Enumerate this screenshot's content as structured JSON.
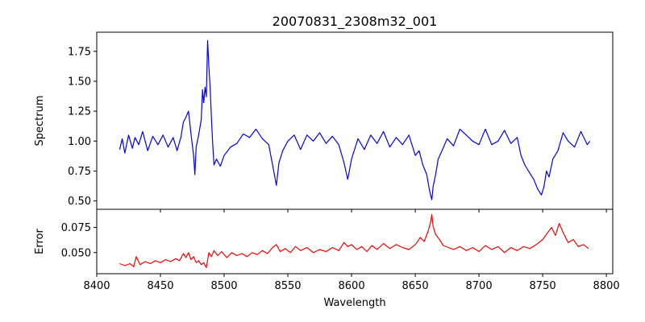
{
  "chart_data": [
    {
      "type": "line",
      "title": "20070831_2308m32_001",
      "xlabel": "",
      "ylabel": "Spectrum",
      "xlim": [
        8400,
        8805
      ],
      "ylim": [
        0.43,
        1.91
      ],
      "xticks": [
        8400,
        8450,
        8500,
        8550,
        8600,
        8650,
        8700,
        8750,
        8800
      ],
      "yticks": [
        0.5,
        0.75,
        1.0,
        1.25,
        1.5,
        1.75
      ],
      "ytick_labels": [
        "0.50",
        "0.75",
        "1.00",
        "1.25",
        "1.50",
        "1.75"
      ],
      "xtick_labels_visible": false,
      "series": [
        {
          "color": "#0000ff",
          "x": [
            8418,
            8420,
            8422,
            8425,
            8428,
            8430,
            8433,
            8436,
            8440,
            8444,
            8448,
            8452,
            8456,
            8460,
            8463,
            8466,
            8468,
            8470,
            8472,
            8474,
            8476,
            8477,
            8478,
            8480,
            8482,
            8483,
            8484,
            8485,
            8486,
            8487,
            8488,
            8489,
            8490,
            8491,
            8492,
            8494,
            8497,
            8500,
            8505,
            8510,
            8515,
            8520,
            8525,
            8530,
            8535,
            8538,
            8541,
            8543,
            8546,
            8550,
            8555,
            8560,
            8565,
            8570,
            8575,
            8580,
            8585,
            8590,
            8594,
            8597,
            8600,
            8605,
            8610,
            8615,
            8620,
            8625,
            8630,
            8635,
            8640,
            8645,
            8650,
            8653,
            8656,
            8659,
            8661,
            8662,
            8663,
            8664,
            8666,
            8668,
            8671,
            8675,
            8680,
            8685,
            8690,
            8695,
            8700,
            8705,
            8710,
            8715,
            8720,
            8725,
            8730,
            8733,
            8736,
            8740,
            8743,
            8746,
            8749,
            8751,
            8753,
            8755,
            8758,
            8762,
            8766,
            8770,
            8775,
            8780,
            8785,
            8787
          ],
          "values": [
            0.93,
            1.02,
            0.9,
            1.05,
            0.94,
            1.03,
            0.97,
            1.08,
            0.92,
            1.04,
            0.97,
            1.05,
            0.95,
            1.03,
            0.92,
            1.03,
            1.16,
            1.2,
            1.25,
            1.06,
            0.88,
            0.72,
            0.95,
            1.05,
            1.18,
            1.43,
            1.32,
            1.45,
            1.37,
            1.84,
            1.62,
            1.45,
            1.2,
            0.98,
            0.8,
            0.85,
            0.79,
            0.88,
            0.95,
            0.98,
            1.06,
            1.03,
            1.1,
            1.02,
            0.97,
            0.8,
            0.63,
            0.82,
            0.92,
            1.0,
            1.05,
            0.93,
            1.05,
            1.0,
            1.07,
            0.98,
            1.04,
            0.97,
            0.82,
            0.68,
            0.85,
            1.02,
            0.93,
            1.05,
            0.98,
            1.08,
            0.95,
            1.03,
            0.97,
            1.05,
            0.88,
            0.92,
            0.8,
            0.72,
            0.6,
            0.55,
            0.51,
            0.62,
            0.72,
            0.85,
            0.92,
            1.02,
            0.96,
            1.1,
            1.05,
            1.0,
            0.97,
            1.1,
            0.97,
            1.0,
            1.09,
            0.98,
            1.03,
            0.88,
            0.8,
            0.73,
            0.68,
            0.6,
            0.55,
            0.62,
            0.75,
            0.7,
            0.85,
            0.92,
            1.07,
            1.0,
            0.95,
            1.08,
            0.97,
            1.0
          ]
        }
      ]
    },
    {
      "type": "line",
      "title": "",
      "xlabel": "Wavelength",
      "ylabel": "Error",
      "xlim": [
        8400,
        8805
      ],
      "ylim": [
        0.029,
        0.093
      ],
      "xticks": [
        8400,
        8450,
        8500,
        8550,
        8600,
        8650,
        8700,
        8750,
        8800
      ],
      "yticks": [
        0.05,
        0.075
      ],
      "ytick_labels": [
        "0.050",
        "0.075"
      ],
      "series": [
        {
          "color": "#ff0000",
          "x": [
            8418,
            8422,
            8426,
            8429,
            8431,
            8434,
            8438,
            8442,
            8446,
            8450,
            8454,
            8458,
            8462,
            8465,
            8468,
            8470,
            8472,
            8474,
            8476,
            8478,
            8480,
            8482,
            8484,
            8486,
            8488,
            8490,
            8492,
            8495,
            8498,
            8502,
            8506,
            8510,
            8514,
            8518,
            8522,
            8526,
            8530,
            8534,
            8538,
            8541,
            8544,
            8548,
            8552,
            8556,
            8560,
            8565,
            8570,
            8575,
            8580,
            8585,
            8590,
            8594,
            8597,
            8600,
            8604,
            8608,
            8612,
            8616,
            8620,
            8625,
            8630,
            8635,
            8640,
            8645,
            8650,
            8654,
            8657,
            8660,
            8662,
            8663,
            8664,
            8666,
            8669,
            8672,
            8676,
            8680,
            8685,
            8690,
            8695,
            8700,
            8705,
            8710,
            8715,
            8720,
            8725,
            8730,
            8735,
            8740,
            8745,
            8750,
            8754,
            8757,
            8760,
            8763,
            8766,
            8770,
            8774,
            8778,
            8782,
            8786
          ],
          "values": [
            0.039,
            0.037,
            0.039,
            0.036,
            0.046,
            0.038,
            0.041,
            0.039,
            0.042,
            0.04,
            0.043,
            0.041,
            0.044,
            0.042,
            0.049,
            0.045,
            0.05,
            0.043,
            0.046,
            0.04,
            0.042,
            0.038,
            0.04,
            0.035,
            0.05,
            0.046,
            0.052,
            0.047,
            0.051,
            0.045,
            0.05,
            0.047,
            0.049,
            0.046,
            0.05,
            0.048,
            0.052,
            0.049,
            0.055,
            0.058,
            0.051,
            0.054,
            0.05,
            0.056,
            0.052,
            0.055,
            0.05,
            0.053,
            0.051,
            0.055,
            0.052,
            0.06,
            0.056,
            0.058,
            0.053,
            0.056,
            0.051,
            0.057,
            0.053,
            0.059,
            0.054,
            0.058,
            0.055,
            0.053,
            0.058,
            0.065,
            0.061,
            0.071,
            0.08,
            0.088,
            0.076,
            0.068,
            0.063,
            0.057,
            0.055,
            0.053,
            0.056,
            0.052,
            0.055,
            0.051,
            0.057,
            0.053,
            0.056,
            0.05,
            0.055,
            0.052,
            0.056,
            0.054,
            0.058,
            0.063,
            0.07,
            0.075,
            0.067,
            0.079,
            0.07,
            0.06,
            0.063,
            0.056,
            0.058,
            0.054
          ]
        }
      ]
    }
  ]
}
